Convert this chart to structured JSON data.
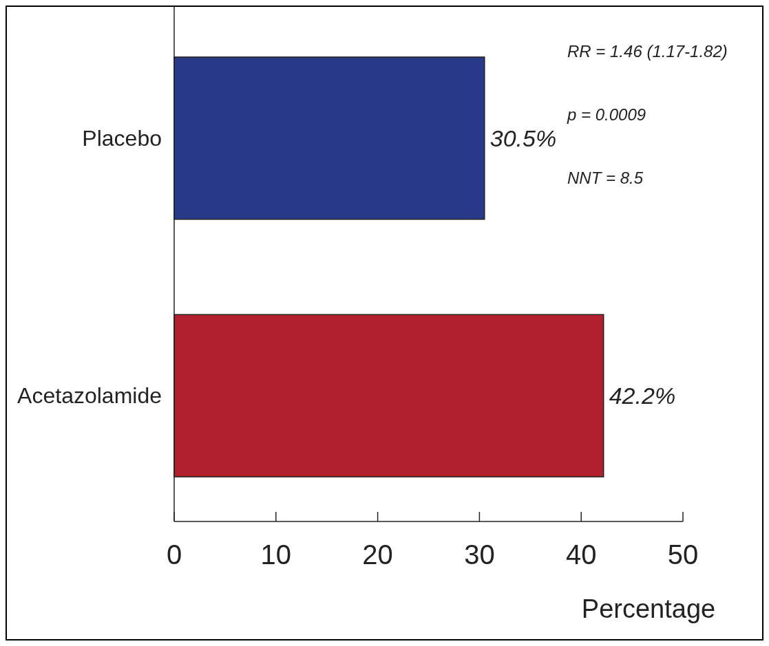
{
  "chart_data": {
    "type": "bar",
    "orientation": "horizontal",
    "categories": [
      "Placebo",
      "Acetazolamide"
    ],
    "values": [
      30.5,
      42.2
    ],
    "colors": [
      "#283a87",
      "#b0212d"
    ],
    "value_labels": [
      "30.5%",
      "42.2%"
    ],
    "xlim": [
      0,
      50
    ],
    "xticks": [
      0,
      10,
      20,
      30,
      40,
      50
    ],
    "xlabel": "Percentage",
    "annotations": [
      "RR = 1.46 (1.17-1.82)",
      "p = 0.0009",
      "NNT = 8.5"
    ],
    "grid": false
  }
}
